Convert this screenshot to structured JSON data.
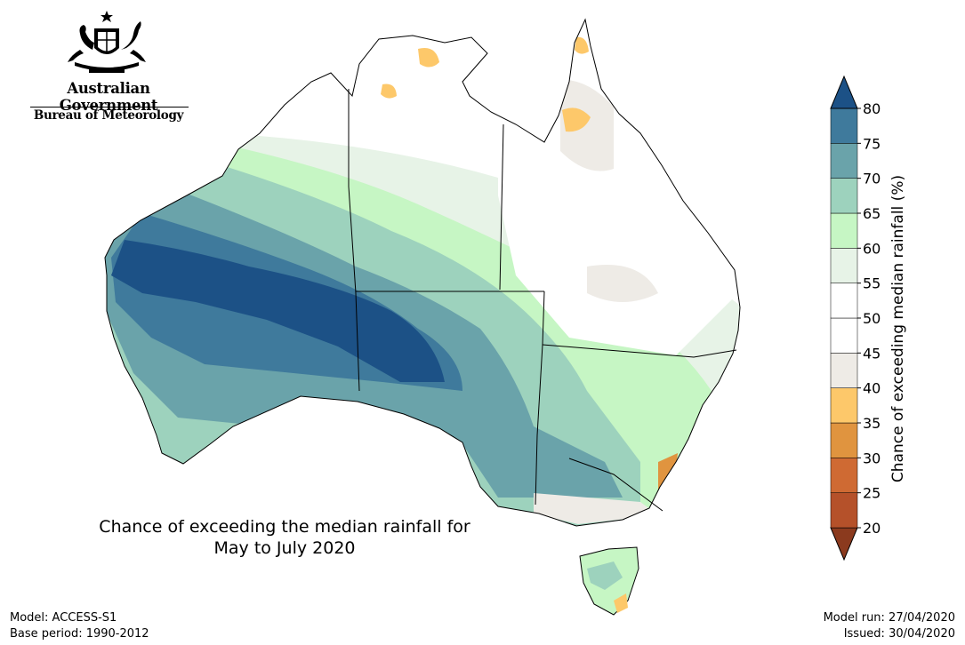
{
  "header": {
    "government": "Australian Government",
    "bureau": "Bureau of Meteorology"
  },
  "map": {
    "title_line1": "Chance of exceeding the median rainfall for",
    "title_line2": "May to July 2020"
  },
  "colorbar": {
    "label": "Chance of exceeding median rainfall (%)",
    "ticks": [
      "20",
      "25",
      "30",
      "35",
      "40",
      "45",
      "50",
      "55",
      "60",
      "65",
      "70",
      "75",
      "80"
    ],
    "colors": [
      "#8b3a1e",
      "#b5512a",
      "#cf6a33",
      "#e0943f",
      "#fdc86a",
      "#eeebe6",
      "#ffffff",
      "#ffffff",
      "#e7f3e7",
      "#c6f6c4",
      "#9dd2bd",
      "#6aa3aa",
      "#3f7a9c",
      "#1c5186"
    ]
  },
  "footer": {
    "model": "Model: ACCESS-S1",
    "base_period": "Base period: 1990-2012",
    "model_run": "Model run: 27/04/2020",
    "issued": "Issued: 30/04/2020"
  }
}
